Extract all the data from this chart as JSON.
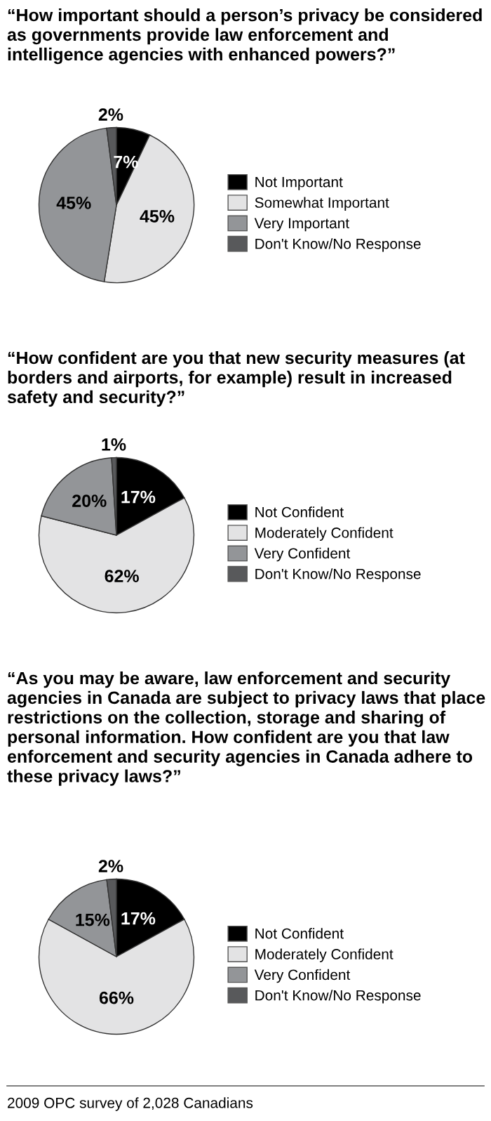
{
  "chart_data": [
    {
      "type": "pie",
      "title": "“How important should a person’s privacy be considered as governments provide law enforcement and intelligence agencies with enhanced powers?”",
      "categories": [
        "Not Important",
        "Somewhat Important",
        "Very Important",
        "Don't Know/No Response"
      ],
      "values": [
        7,
        45,
        45,
        2
      ],
      "colors": [
        "#000000",
        "#e3e3e4",
        "#939598",
        "#58595b"
      ],
      "value_labels": [
        "7%",
        "45%",
        "45%",
        "2%"
      ],
      "legend": "right"
    },
    {
      "type": "pie",
      "title": "“How confident are you that new security measures (at borders and airports, for example) result in increased safety and security?”",
      "categories": [
        "Not Confident",
        "Moderately Confident",
        "Very Confident",
        "Don't Know/No Response"
      ],
      "values": [
        17,
        62,
        20,
        1
      ],
      "colors": [
        "#000000",
        "#e3e3e4",
        "#939598",
        "#58595b"
      ],
      "value_labels": [
        "17%",
        "62%",
        "20%",
        "1%"
      ],
      "legend": "right"
    },
    {
      "type": "pie",
      "title": "“As you may be aware, law enforcement and security agencies in Canada are subject to privacy laws that place restrictions on the collection, storage and sharing of personal information. How confident are you that law enforcement and security agencies in Canada adhere to these privacy laws?”",
      "categories": [
        "Not Confident",
        "Moderately Confident",
        "Very Confident",
        "Don't Know/No Response"
      ],
      "values": [
        17,
        66,
        15,
        2
      ],
      "colors": [
        "#000000",
        "#e3e3e4",
        "#939598",
        "#58595b"
      ],
      "value_labels": [
        "17%",
        "66%",
        "15%",
        "2%"
      ],
      "legend": "right",
      "annotations": [
        "2009 OPC survey of 2,028 Canadians"
      ]
    }
  ]
}
